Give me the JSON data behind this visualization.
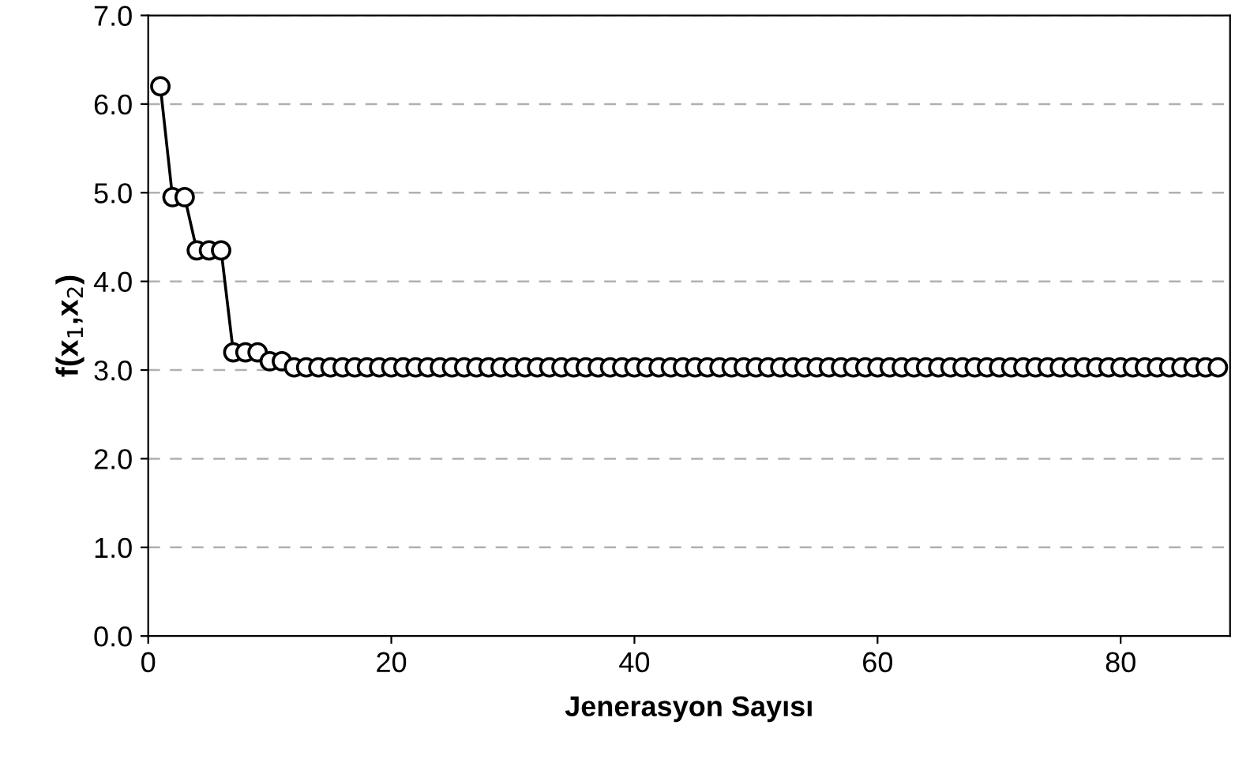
{
  "chart_data": {
    "type": "line",
    "xlabel": "Jenerasyon Sayısı",
    "ylabel": "f(x$_{1}$,x$_{2}$)",
    "x": [
      1,
      2,
      3,
      4,
      5,
      6,
      7,
      8,
      9,
      10,
      11,
      12,
      13,
      14,
      15,
      16,
      17,
      18,
      19,
      20,
      21,
      22,
      23,
      24,
      25,
      26,
      27,
      28,
      29,
      30,
      31,
      32,
      33,
      34,
      35,
      36,
      37,
      38,
      39,
      40,
      41,
      42,
      43,
      44,
      45,
      46,
      47,
      48,
      49,
      50,
      51,
      52,
      53,
      54,
      55,
      56,
      57,
      58,
      59,
      60,
      61,
      62,
      63,
      64,
      65,
      66,
      67,
      68,
      69,
      70,
      71,
      72,
      73,
      74,
      75,
      76,
      77,
      78,
      79,
      80,
      81,
      82,
      83,
      84,
      85,
      86,
      87,
      88
    ],
    "series": [
      {
        "color": "#000000",
        "values": [
          6.2,
          4.95,
          4.95,
          4.35,
          4.35,
          4.35,
          3.2,
          3.2,
          3.2,
          3.1,
          3.1,
          3.03,
          3.03,
          3.03,
          3.03,
          3.03,
          3.03,
          3.03,
          3.03,
          3.03,
          3.03,
          3.03,
          3.03,
          3.03,
          3.03,
          3.03,
          3.03,
          3.03,
          3.03,
          3.03,
          3.03,
          3.03,
          3.03,
          3.03,
          3.03,
          3.03,
          3.03,
          3.03,
          3.03,
          3.03,
          3.03,
          3.03,
          3.03,
          3.03,
          3.03,
          3.03,
          3.03,
          3.03,
          3.03,
          3.03,
          3.03,
          3.03,
          3.03,
          3.03,
          3.03,
          3.03,
          3.03,
          3.03,
          3.03,
          3.03,
          3.03,
          3.03,
          3.03,
          3.03,
          3.03,
          3.03,
          3.03,
          3.03,
          3.03,
          3.03,
          3.03,
          3.03,
          3.03,
          3.03,
          3.03,
          3.03,
          3.03,
          3.03,
          3.03,
          3.03,
          3.03,
          3.03,
          3.03,
          3.03,
          3.03,
          3.03,
          3.03,
          3.03
        ]
      }
    ],
    "xlim": [
      0,
      89
    ],
    "xticks": [
      0,
      20,
      40,
      60,
      80
    ],
    "ylim": [
      0,
      7
    ],
    "yticks": [
      {
        "value": 0,
        "label": "0.0"
      },
      {
        "value": 1,
        "label": "1.0"
      },
      {
        "value": 2,
        "label": "2.0"
      },
      {
        "value": 3,
        "label": "3.0"
      },
      {
        "value": 4,
        "label": "4.0"
      },
      {
        "value": 5,
        "label": "5.0"
      },
      {
        "value": 6,
        "label": "6.0"
      },
      {
        "value": 7,
        "label": "7.0"
      }
    ],
    "grid": "y",
    "marker": "circle",
    "line_style": "solid",
    "legend": false
  }
}
